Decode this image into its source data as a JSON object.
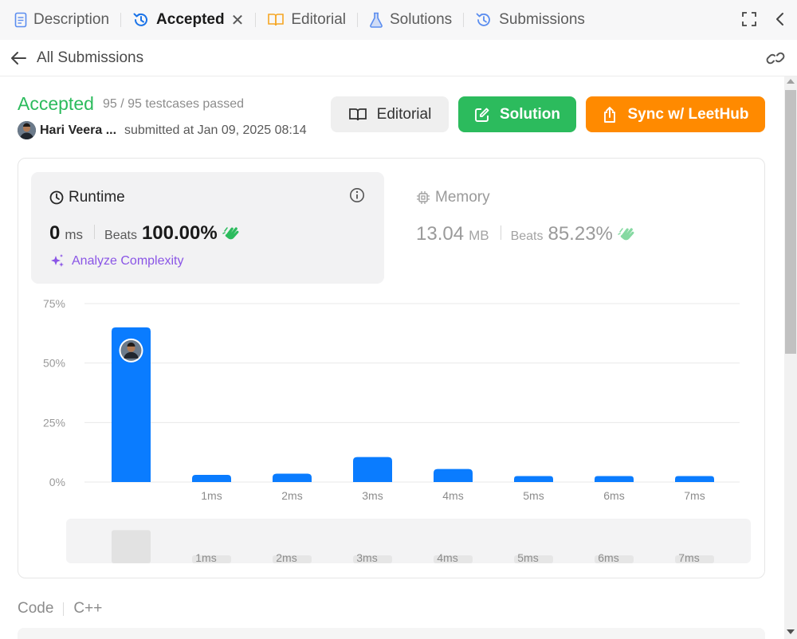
{
  "tabs": [
    {
      "label": "Description",
      "icon": "document-icon"
    },
    {
      "label": "Accepted",
      "icon": "history-icon",
      "active": true
    },
    {
      "label": "Editorial",
      "icon": "book-icon"
    },
    {
      "label": "Solutions",
      "icon": "flask-icon"
    },
    {
      "label": "Submissions",
      "icon": "history-icon"
    }
  ],
  "back": {
    "label": "All Submissions"
  },
  "submission": {
    "status": "Accepted",
    "testcases": "95 / 95 testcases passed",
    "user": "Hari Veera ...",
    "submitted": "submitted at Jan 09, 2025 08:14"
  },
  "buttons": {
    "editorial": "Editorial",
    "solution": "Solution",
    "sync": "Sync w/ LeetHub"
  },
  "runtime": {
    "title": "Runtime",
    "value": "0",
    "unit": "ms",
    "beats_label": "Beats",
    "beats": "100.00%",
    "analyze": "Analyze Complexity"
  },
  "memory": {
    "title": "Memory",
    "value": "13.04",
    "unit": "MB",
    "beats_label": "Beats",
    "beats": "85.23%"
  },
  "colors": {
    "accepted": "#2cbb5d",
    "bar": "#0a7cff",
    "sync": "#ff8a00",
    "analyze": "#8a55e6"
  },
  "chart_data": {
    "type": "bar",
    "categories": [
      "",
      "1ms",
      "2ms",
      "3ms",
      "4ms",
      "5ms",
      "6ms",
      "7ms"
    ],
    "values": [
      65,
      3,
      3.5,
      10.5,
      5.5,
      2.5,
      2.5,
      2.5
    ],
    "yticks": [
      "0%",
      "25%",
      "50%",
      "75%"
    ],
    "ylim": [
      0,
      75
    ],
    "grid": true,
    "highlight_index": 0,
    "navigator_labels": [
      "1ms",
      "2ms",
      "3ms",
      "4ms",
      "5ms",
      "6ms",
      "7ms"
    ]
  },
  "code": {
    "label": "Code",
    "language": "C++"
  }
}
